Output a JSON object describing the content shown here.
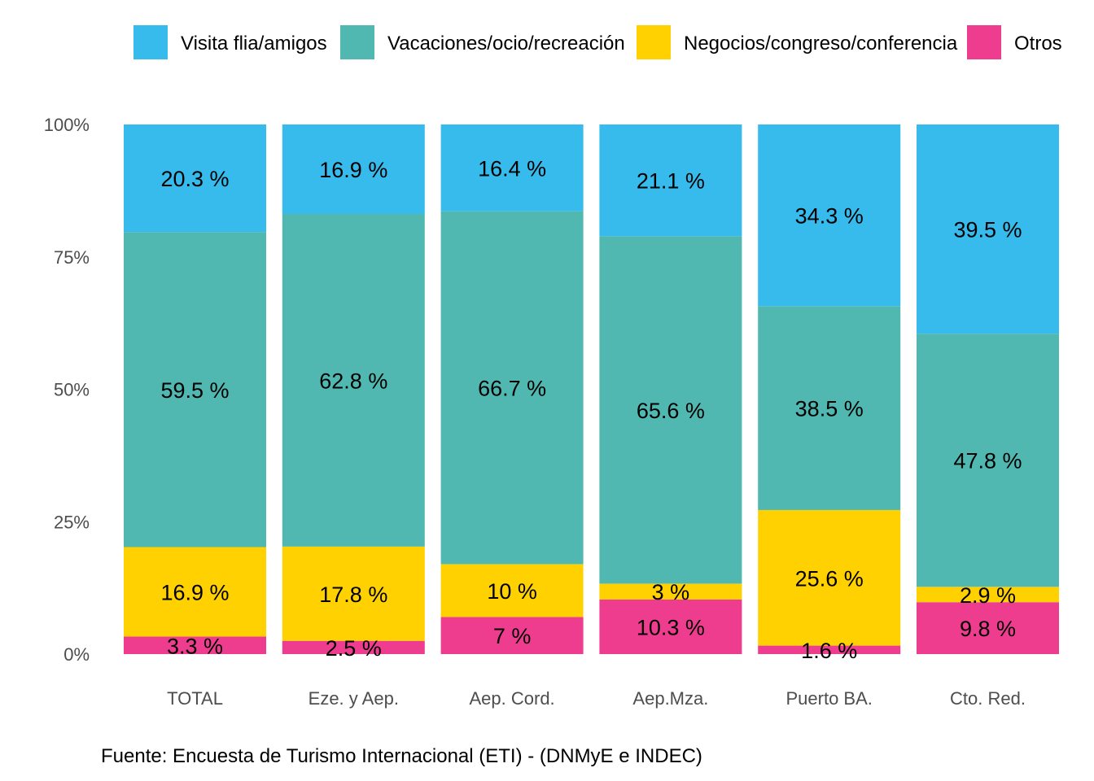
{
  "chart_data": {
    "type": "bar",
    "stacked": true,
    "normalized": true,
    "categories": [
      "TOTAL",
      "Eze. y Aep.",
      "Aep. Cord.",
      "Aep.Mza.",
      "Puerto BA.",
      "Cto. Red."
    ],
    "series": [
      {
        "name": "Otros",
        "color": "#EE3D8F",
        "values": [
          3.3,
          2.5,
          7,
          10.3,
          1.6,
          9.8
        ],
        "labels": [
          "3.3 %",
          "2.5 %",
          "7 %",
          "10.3 %",
          "1.6 %",
          "9.8 %"
        ]
      },
      {
        "name": "Negocios/congreso/conferencia",
        "color": "#FFD100",
        "values": [
          16.9,
          17.8,
          10,
          3,
          25.6,
          2.9
        ],
        "labels": [
          "16.9 %",
          "17.8 %",
          "10 %",
          "3 %",
          "25.6 %",
          "2.9 %"
        ]
      },
      {
        "name": "Vacaciones/ocio/recreación",
        "color": "#50B8B1",
        "values": [
          59.5,
          62.8,
          66.7,
          65.6,
          38.5,
          47.8
        ],
        "labels": [
          "59.5 %",
          "62.8 %",
          "66.7 %",
          "65.6 %",
          "38.5 %",
          "47.8 %"
        ]
      },
      {
        "name": "Visita flia/amigos",
        "color": "#37BBED",
        "values": [
          20.3,
          16.9,
          16.4,
          21.1,
          34.3,
          39.5
        ],
        "labels": [
          "20.3 %",
          "16.9 %",
          "16.4 %",
          "21.1 %",
          "34.3 %",
          "39.5 %"
        ]
      }
    ],
    "legend_order": [
      "Visita flia/amigos",
      "Vacaciones/ocio/recreación",
      "Negocios/congreso/conferencia",
      "Otros"
    ],
    "legend_position": "top",
    "ylim": [
      0,
      100
    ],
    "yticks": [
      0,
      25,
      50,
      75,
      100
    ],
    "ytick_labels": [
      "0%",
      "25%",
      "50%",
      "75%",
      "100%"
    ],
    "grid": false,
    "caption": "Fuente: Encuesta de Turismo Internacional (ETI) - (DNMyE e INDEC)"
  }
}
